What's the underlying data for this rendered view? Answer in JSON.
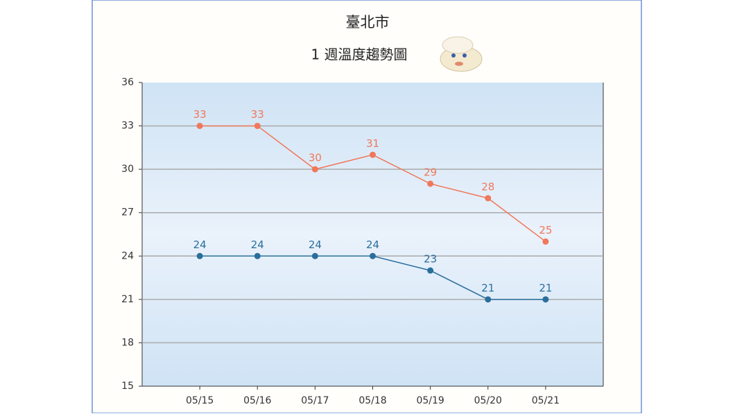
{
  "chart_data": {
    "type": "line",
    "title": "臺北市",
    "subtitle": "1 週溫度趨勢圖",
    "categories": [
      "05/15",
      "05/16",
      "05/17",
      "05/18",
      "05/19",
      "05/20",
      "05/21"
    ],
    "series": [
      {
        "color": "#f0785a",
        "values": [
          33,
          33,
          30,
          31,
          29,
          28,
          25
        ]
      },
      {
        "color": "#2a6e9c",
        "values": [
          24,
          24,
          24,
          24,
          23,
          21,
          21
        ]
      }
    ],
    "ylim": [
      15,
      36
    ],
    "yticks": [
      15,
      18,
      21,
      24,
      27,
      30,
      33,
      36
    ],
    "grid": true
  }
}
